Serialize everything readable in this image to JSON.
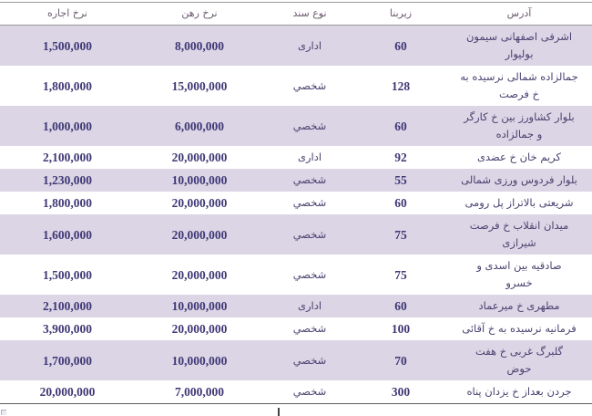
{
  "table": {
    "columns": [
      {
        "key": "address",
        "label": "آدرس"
      },
      {
        "key": "area",
        "label": "زیربنا"
      },
      {
        "key": "doc_type",
        "label": "نوع سند"
      },
      {
        "key": "mortgage",
        "label": "نرخ رهن"
      },
      {
        "key": "rent",
        "label": "نرخ اجاره"
      }
    ],
    "rows": [
      {
        "address": "اشرفی اصفهانی سیمون\nبولیوار",
        "area": "60",
        "doc_type": "اداری",
        "mortgage": "8,000,000",
        "rent": "1,500,000"
      },
      {
        "address": "جمالزاده شمالی نرسیده به\nخ فرصت",
        "area": "128",
        "doc_type": "شخصي",
        "mortgage": "15,000,000",
        "rent": "1,800,000"
      },
      {
        "address": "بلوار کشاورز بین خ کارگر\nو جمالزاده",
        "area": "60",
        "doc_type": "شخصي",
        "mortgage": "6,000,000",
        "rent": "1,000,000"
      },
      {
        "address": "کریم خان خ عضدی",
        "area": "92",
        "doc_type": "اداری",
        "mortgage": "20,000,000",
        "rent": "2,100,000"
      },
      {
        "address": "بلوار فردوس ورزی شمالی",
        "area": "55",
        "doc_type": "شخصي",
        "mortgage": "10,000,000",
        "rent": "1,230,000"
      },
      {
        "address": "شریعتی بالاتراز پل رومی",
        "area": "60",
        "doc_type": "شخصي",
        "mortgage": "20,000,000",
        "rent": "1,800,000"
      },
      {
        "address": "میدان انقلاب خ فرصت\nشیرازی",
        "area": "75",
        "doc_type": "شخصي",
        "mortgage": "20,000,000",
        "rent": "1,600,000"
      },
      {
        "address": "صادقیه بین اسدی و\nخسرو",
        "area": "75",
        "doc_type": "شخصي",
        "mortgage": "20,000,000",
        "rent": "1,500,000"
      },
      {
        "address": "مطهری خ میرعماد",
        "area": "60",
        "doc_type": "اداری",
        "mortgage": "10,000,000",
        "rent": "2,100,000"
      },
      {
        "address": "فرمانیه نرسیده به خ آقائی",
        "area": "100",
        "doc_type": "شخصي",
        "mortgage": "20,000,000",
        "rent": "3,900,000"
      },
      {
        "address": "گلبرگ غربی خ هفت\nحوض",
        "area": "70",
        "doc_type": "شخصي",
        "mortgage": "10,000,000",
        "rent": "1,700,000"
      },
      {
        "address": "جردن بعداز خ یزدان پناه",
        "area": "300",
        "doc_type": "شخصي",
        "mortgage": "7,000,000",
        "rent": "20,000,000"
      }
    ]
  },
  "colors": {
    "row_shaded": "#dbd5e5",
    "number_text": "#3f3876",
    "persian_text": "#4c4170",
    "header_text": "#6b5a6e",
    "border_light": "#9a9a9a",
    "border_dark": "#5a5a5a"
  }
}
